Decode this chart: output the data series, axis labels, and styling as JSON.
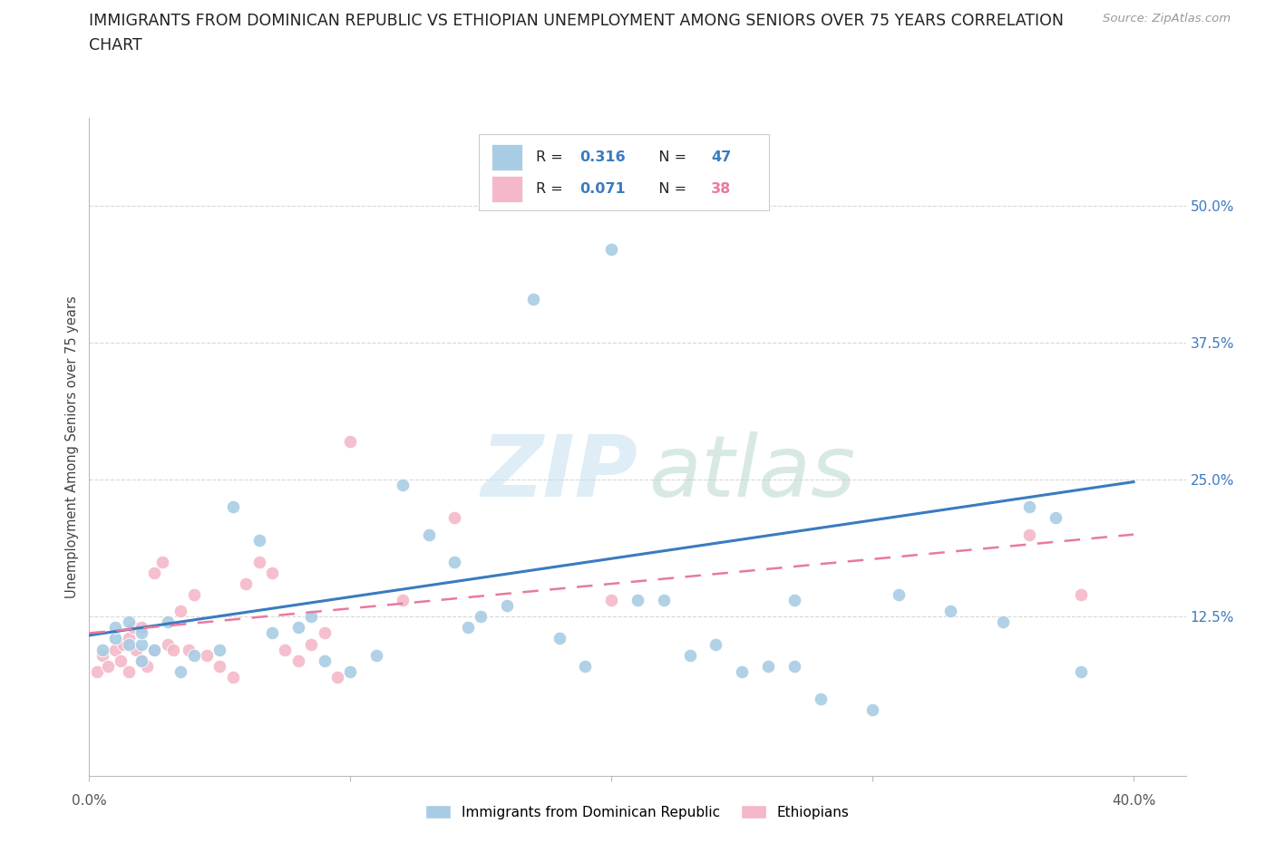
{
  "title_line1": "IMMIGRANTS FROM DOMINICAN REPUBLIC VS ETHIOPIAN UNEMPLOYMENT AMONG SENIORS OVER 75 YEARS CORRELATION",
  "title_line2": "CHART",
  "source": "Source: ZipAtlas.com",
  "ylabel": "Unemployment Among Seniors over 75 years",
  "ytick_values": [
    0.125,
    0.25,
    0.375,
    0.5
  ],
  "ytick_labels": [
    "12.5%",
    "25.0%",
    "37.5%",
    "50.0%"
  ],
  "xlim": [
    0.0,
    0.42
  ],
  "ylim": [
    -0.02,
    0.58
  ],
  "color_blue": "#a8cce4",
  "color_pink": "#f4b8c8",
  "color_blue_line": "#3a7bbf",
  "color_pink_line": "#e87a9f",
  "color_blue_text": "#3a7bbf",
  "color_pink_text": "#e87a9f",
  "legend_label1": "Immigrants from Dominican Republic",
  "legend_label2": "Ethiopians",
  "blue_scatter_x": [
    0.005,
    0.01,
    0.01,
    0.015,
    0.015,
    0.02,
    0.02,
    0.02,
    0.025,
    0.03,
    0.035,
    0.04,
    0.05,
    0.055,
    0.065,
    0.07,
    0.08,
    0.085,
    0.09,
    0.1,
    0.11,
    0.12,
    0.13,
    0.14,
    0.145,
    0.15,
    0.16,
    0.17,
    0.18,
    0.19,
    0.2,
    0.21,
    0.22,
    0.23,
    0.25,
    0.26,
    0.27,
    0.28,
    0.3,
    0.31,
    0.33,
    0.35,
    0.36,
    0.37,
    0.38,
    0.27,
    0.24
  ],
  "blue_scatter_y": [
    0.095,
    0.105,
    0.115,
    0.1,
    0.12,
    0.085,
    0.1,
    0.11,
    0.095,
    0.12,
    0.075,
    0.09,
    0.095,
    0.225,
    0.195,
    0.11,
    0.115,
    0.125,
    0.085,
    0.075,
    0.09,
    0.245,
    0.2,
    0.175,
    0.115,
    0.125,
    0.135,
    0.415,
    0.105,
    0.08,
    0.46,
    0.14,
    0.14,
    0.09,
    0.075,
    0.08,
    0.08,
    0.05,
    0.04,
    0.145,
    0.13,
    0.12,
    0.225,
    0.215,
    0.075,
    0.14,
    0.1
  ],
  "pink_scatter_x": [
    0.003,
    0.005,
    0.007,
    0.01,
    0.012,
    0.013,
    0.015,
    0.015,
    0.017,
    0.018,
    0.02,
    0.02,
    0.022,
    0.025,
    0.025,
    0.028,
    0.03,
    0.032,
    0.035,
    0.038,
    0.04,
    0.045,
    0.05,
    0.055,
    0.06,
    0.065,
    0.07,
    0.075,
    0.08,
    0.085,
    0.09,
    0.095,
    0.1,
    0.12,
    0.14,
    0.2,
    0.36,
    0.38
  ],
  "pink_scatter_y": [
    0.075,
    0.09,
    0.08,
    0.095,
    0.085,
    0.1,
    0.075,
    0.105,
    0.115,
    0.095,
    0.085,
    0.115,
    0.08,
    0.095,
    0.165,
    0.175,
    0.1,
    0.095,
    0.13,
    0.095,
    0.145,
    0.09,
    0.08,
    0.07,
    0.155,
    0.175,
    0.165,
    0.095,
    0.085,
    0.1,
    0.11,
    0.07,
    0.285,
    0.14,
    0.215,
    0.14,
    0.2,
    0.145
  ],
  "blue_line_x": [
    0.0,
    0.4
  ],
  "blue_line_y": [
    0.108,
    0.248
  ],
  "pink_line_x": [
    0.0,
    0.4
  ],
  "pink_line_y": [
    0.11,
    0.2
  ],
  "background_color": "#ffffff",
  "grid_color": "#d8d8d8",
  "title_fontsize": 12.5,
  "axis_label_fontsize": 10.5
}
